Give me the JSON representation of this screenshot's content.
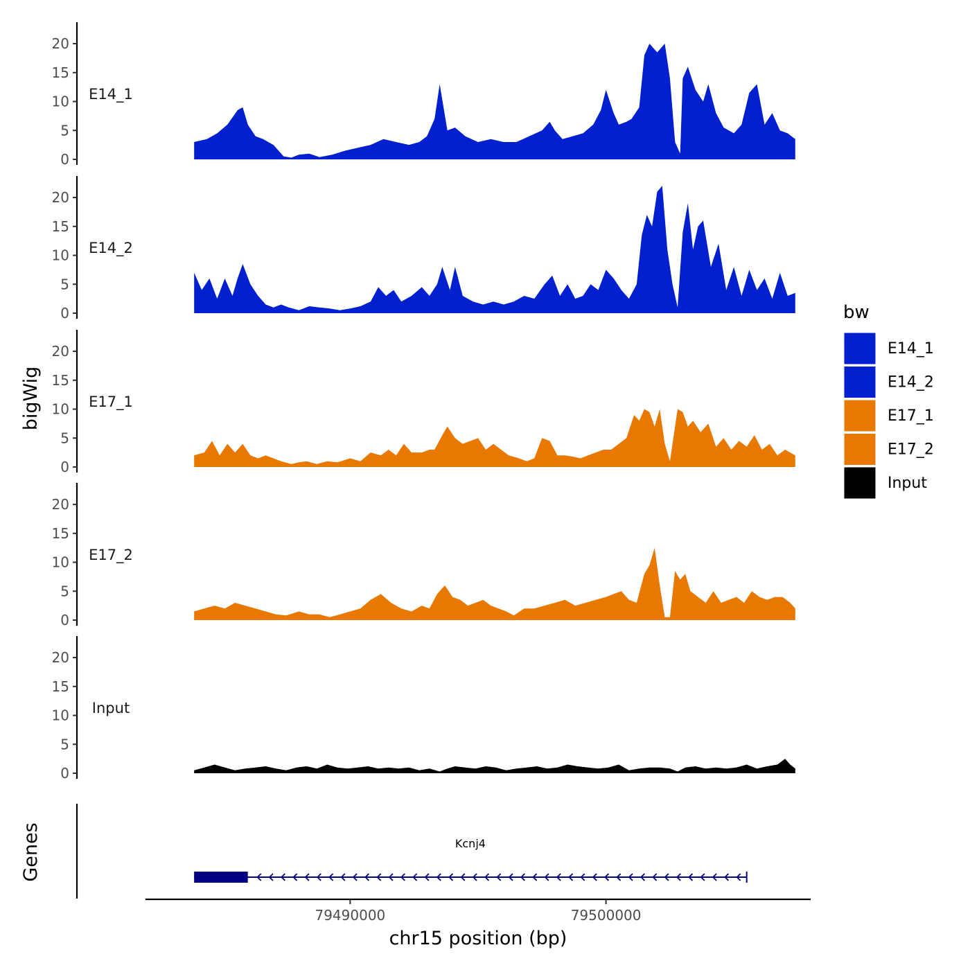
{
  "chart_data": {
    "type": "area",
    "title": "",
    "xlabel": "chr15 position (bp)",
    "ylabel": "bigWig",
    "genes_track_label": "Genes",
    "xlim": [
      79482000,
      79508000
    ],
    "x_ticks": [
      79490000,
      79500000
    ],
    "x_tick_labels": [
      "79490000",
      "79500000"
    ],
    "ylim": [
      0,
      23
    ],
    "y_ticks": [
      0,
      5,
      10,
      15,
      20
    ],
    "y_tick_labels": [
      "0",
      "5",
      "10",
      "15",
      "20"
    ],
    "legend": {
      "title": "bw",
      "position": "right",
      "entries": [
        {
          "label": "E14_1",
          "color": "#0020D0"
        },
        {
          "label": "E14_2",
          "color": "#0020D0"
        },
        {
          "label": "E17_1",
          "color": "#E87800"
        },
        {
          "label": "E17_2",
          "color": "#E87800"
        },
        {
          "label": "Input",
          "color": "#000000"
        }
      ]
    },
    "series": [
      {
        "name": "E14_1",
        "color": "#0020D0",
        "x": [
          79483900,
          79484400,
          79484800,
          79485200,
          79485600,
          79485800,
          79486000,
          79486300,
          79486600,
          79487000,
          79487400,
          79487700,
          79488000,
          79488400,
          79488800,
          79489300,
          79489800,
          79490300,
          79490800,
          79491300,
          79491800,
          79492300,
          79492700,
          79493000,
          79493300,
          79493500,
          79493800,
          79494100,
          79494500,
          79495000,
          79495500,
          79496000,
          79496500,
          79497000,
          79497500,
          79497800,
          79498000,
          79498300,
          79498700,
          79499100,
          79499500,
          79499800,
          79500000,
          79500300,
          79500500,
          79500800,
          79501000,
          79501300,
          79501500,
          79501700,
          79502000,
          79502300,
          79502500,
          79502700,
          79502900,
          79503000,
          79503200,
          79503500,
          79503800,
          79504000,
          79504300,
          79504600,
          79505000,
          79505300,
          79505600,
          79505900,
          79506200,
          79506500,
          79506800,
          79507100,
          79507400
        ],
        "values": [
          3,
          3.5,
          4.5,
          6,
          8.5,
          9,
          6,
          4,
          3.5,
          2.5,
          0.5,
          0.3,
          0.8,
          1,
          0.4,
          0.8,
          1.5,
          2,
          2.5,
          3.5,
          3,
          2.5,
          3,
          4,
          7,
          13,
          5,
          5.5,
          4,
          3,
          3.5,
          3,
          3,
          4,
          5,
          6.5,
          5,
          3.5,
          4,
          4.5,
          6,
          8.5,
          12,
          8,
          6,
          6.5,
          7,
          9,
          18,
          20,
          18.5,
          20,
          14,
          3,
          1,
          14,
          16,
          12,
          10,
          13,
          8,
          5.5,
          4.5,
          6,
          11.5,
          13,
          6,
          8,
          5,
          4.5,
          3.5
        ]
      },
      {
        "name": "E14_2",
        "color": "#0020D0",
        "x": [
          79483900,
          79484200,
          79484500,
          79484800,
          79485100,
          79485400,
          79485600,
          79485800,
          79486100,
          79486400,
          79486700,
          79487000,
          79487300,
          79487600,
          79488000,
          79488400,
          79488800,
          79489200,
          79489600,
          79490000,
          79490400,
          79490800,
          79491100,
          79491400,
          79491700,
          79492000,
          79492400,
          79492800,
          79493100,
          79493400,
          79493600,
          79493900,
          79494100,
          79494400,
          79494800,
          79495200,
          79495600,
          79496000,
          79496400,
          79496800,
          79497200,
          79497600,
          79497900,
          79498200,
          79498500,
          79498800,
          79499100,
          79499400,
          79499700,
          79500000,
          79500300,
          79500600,
          79500900,
          79501200,
          79501400,
          79501600,
          79501800,
          79502000,
          79502200,
          79502400,
          79502600,
          79502800,
          79503000,
          79503200,
          79503400,
          79503600,
          79503800,
          79504100,
          79504400,
          79504700,
          79505000,
          79505300,
          79505600,
          79505900,
          79506200,
          79506500,
          79506800,
          79507100,
          79507400
        ],
        "values": [
          7,
          4,
          6,
          2.5,
          6,
          3,
          6,
          8.5,
          5,
          3,
          1.5,
          1,
          1.5,
          1,
          0.5,
          1.2,
          1,
          0.8,
          0.5,
          0.8,
          1.2,
          2,
          4.5,
          3,
          4,
          2,
          3,
          4.5,
          3,
          5,
          8,
          4,
          8,
          3,
          2,
          1.5,
          2,
          1.5,
          2,
          3,
          2.5,
          5,
          6.5,
          3,
          5,
          2.5,
          3,
          5,
          4,
          7.5,
          6,
          4,
          2.5,
          5,
          13.5,
          17,
          15,
          21,
          22,
          11,
          5,
          1,
          14,
          19,
          11,
          15,
          16,
          8,
          12,
          4,
          8,
          3,
          7.5,
          4,
          6,
          2.5,
          7,
          3,
          3.5
        ]
      },
      {
        "name": "E17_1",
        "color": "#E87800",
        "x": [
          79483900,
          79484300,
          79484600,
          79484900,
          79485200,
          79485500,
          79485800,
          79486100,
          79486400,
          79486700,
          79487000,
          79487300,
          79487700,
          79488000,
          79488300,
          79488700,
          79489100,
          79489500,
          79490000,
          79490400,
          79490800,
          79491200,
          79491500,
          79491800,
          79492100,
          79492400,
          79492800,
          79493100,
          79493300,
          79493600,
          79493800,
          79494100,
          79494400,
          79494700,
          79495000,
          79495300,
          79495600,
          79495900,
          79496200,
          79496600,
          79496900,
          79497200,
          79497500,
          79497800,
          79498100,
          79498400,
          79498700,
          79499000,
          79499300,
          79499600,
          79499900,
          79500200,
          79500500,
          79500800,
          79501100,
          79501300,
          79501500,
          79501700,
          79501900,
          79502100,
          79502300,
          79502500,
          79502800,
          79503000,
          79503200,
          79503400,
          79503700,
          79504000,
          79504300,
          79504600,
          79504900,
          79505200,
          79505500,
          79505800,
          79506100,
          79506400,
          79506700,
          79507000,
          79507400
        ],
        "values": [
          2,
          2.5,
          4.5,
          2,
          4,
          2.5,
          4,
          2,
          1.5,
          2,
          1.5,
          1,
          0.5,
          0.8,
          1,
          0.5,
          1,
          0.8,
          1.5,
          1,
          2.5,
          2,
          3,
          2,
          4,
          2.5,
          2.5,
          3,
          3,
          5.5,
          7,
          5,
          4,
          4.5,
          5,
          3,
          4,
          3,
          2,
          1.5,
          1,
          1.5,
          5,
          4.5,
          2,
          2,
          1.8,
          1.5,
          2,
          2.5,
          3,
          3,
          4,
          5,
          9,
          8,
          10,
          9.5,
          7,
          10,
          4,
          1,
          10,
          9.5,
          7,
          8,
          6,
          7.5,
          3.5,
          5,
          3,
          4.5,
          3.5,
          5.5,
          3,
          4,
          2,
          3,
          2
        ]
      },
      {
        "name": "E17_2",
        "color": "#E87800",
        "x": [
          79483900,
          79484300,
          79484700,
          79485100,
          79485500,
          79485900,
          79486300,
          79486700,
          79487100,
          79487500,
          79488000,
          79488400,
          79488800,
          79489200,
          79489600,
          79490000,
          79490400,
          79490800,
          79491200,
          79491600,
          79492000,
          79492400,
          79492800,
          79493100,
          79493400,
          79493700,
          79494000,
          79494300,
          79494600,
          79494900,
          79495200,
          79495500,
          79495800,
          79496100,
          79496400,
          79496800,
          79497200,
          79497600,
          79498000,
          79498400,
          79498800,
          79499200,
          79499600,
          79500000,
          79500300,
          79500600,
          79500900,
          79501200,
          79501500,
          79501700,
          79501900,
          79502100,
          79502300,
          79502500,
          79502700,
          79502900,
          79503100,
          79503300,
          79503600,
          79503900,
          79504200,
          79504500,
          79504800,
          79505100,
          79505400,
          79505700,
          79506000,
          79506300,
          79506600,
          79506900,
          79507200,
          79507400
        ],
        "values": [
          1.5,
          2,
          2.5,
          2,
          3,
          2.5,
          2,
          1.5,
          1,
          0.8,
          1.5,
          1,
          1,
          0.5,
          1,
          1.5,
          2,
          3.5,
          4.5,
          3,
          2,
          1.5,
          2.5,
          2,
          4.5,
          6,
          4,
          3.5,
          2.5,
          3,
          3.5,
          2.5,
          2,
          1.5,
          0.8,
          2,
          2,
          2.5,
          3,
          3.5,
          2.5,
          3,
          3.5,
          4,
          4.5,
          5,
          3.5,
          3,
          8,
          9.5,
          12.5,
          6,
          0.5,
          0.5,
          8.5,
          7,
          8,
          5,
          4,
          3,
          5,
          3,
          3.5,
          4,
          3,
          5,
          4,
          3.5,
          4,
          4,
          3,
          2
        ]
      },
      {
        "name": "Input",
        "color": "#000000",
        "x": [
          79483900,
          79484300,
          79484700,
          79485100,
          79485500,
          79485900,
          79486300,
          79486700,
          79487100,
          79487500,
          79487900,
          79488300,
          79488700,
          79489100,
          79489500,
          79489900,
          79490300,
          79490700,
          79491100,
          79491500,
          79491900,
          79492300,
          79492700,
          79493100,
          79493500,
          79493800,
          79494100,
          79494500,
          79494900,
          79495300,
          79495700,
          79496100,
          79496500,
          79496900,
          79497300,
          79497700,
          79498100,
          79498500,
          79498900,
          79499300,
          79499700,
          79500100,
          79500500,
          79500900,
          79501300,
          79501700,
          79502100,
          79502500,
          79502800,
          79503100,
          79503500,
          79503900,
          79504300,
          79504700,
          79505100,
          79505500,
          79505900,
          79506300,
          79506700,
          79507000,
          79507200,
          79507400
        ],
        "values": [
          0.5,
          1,
          1.5,
          1,
          0.5,
          0.8,
          1,
          1.2,
          0.8,
          0.5,
          1,
          1.2,
          0.8,
          1.5,
          1,
          0.8,
          1,
          1.2,
          0.8,
          1,
          0.8,
          1,
          0.5,
          0.8,
          0.3,
          0.8,
          1.2,
          1,
          0.8,
          1.2,
          1,
          0.5,
          0.8,
          1,
          1.2,
          0.8,
          1,
          1.5,
          1.2,
          1,
          0.8,
          1,
          1.5,
          0.5,
          0.8,
          1,
          1,
          0.8,
          0.3,
          1,
          1.2,
          0.8,
          1,
          0.8,
          1,
          1.5,
          0.8,
          1.2,
          1.5,
          2.5,
          1.5,
          0.8
        ]
      }
    ],
    "genes": [
      {
        "name": "Kcnj4",
        "start": 79483900,
        "end": 79505500,
        "strand": "-",
        "thick_start": 79483900,
        "thick_end": 79486000,
        "color": "#000080"
      }
    ]
  }
}
